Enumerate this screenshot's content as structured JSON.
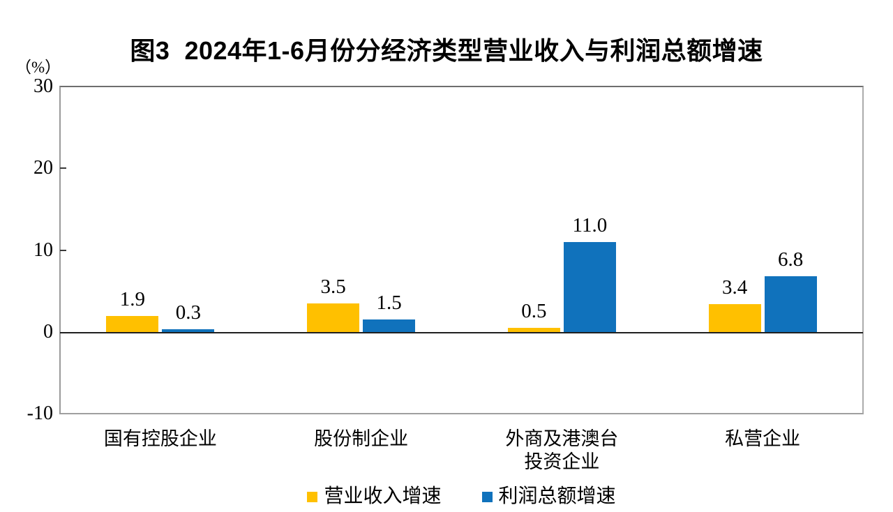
{
  "chart_data": {
    "type": "bar",
    "title": "图3  2024年1-6月份分经济类型营业收入与利润总额增速",
    "ylabel": "（%）",
    "ylim": [
      -10,
      30
    ],
    "yticks": [
      30,
      20,
      10,
      0,
      -10
    ],
    "inner_tick_values": [
      20,
      10
    ],
    "grid": false,
    "legend_position": "bottom",
    "categories": [
      "国有控股企业",
      "股份制企业",
      "外商及港澳台\n投资企业",
      "私营企业"
    ],
    "series": [
      {
        "name": "营业收入增速",
        "color": "#FFC000",
        "values": [
          1.9,
          3.5,
          0.5,
          3.4
        ]
      },
      {
        "name": "利润总额增速",
        "color": "#1072BC",
        "values": [
          0.3,
          1.5,
          11.0,
          6.8
        ]
      }
    ],
    "value_label_decimals": 1,
    "axis_color": "#9a9a9a",
    "zero_line_color": "#1f1f1f",
    "text_color": "#000000",
    "background_color": "#ffffff"
  }
}
